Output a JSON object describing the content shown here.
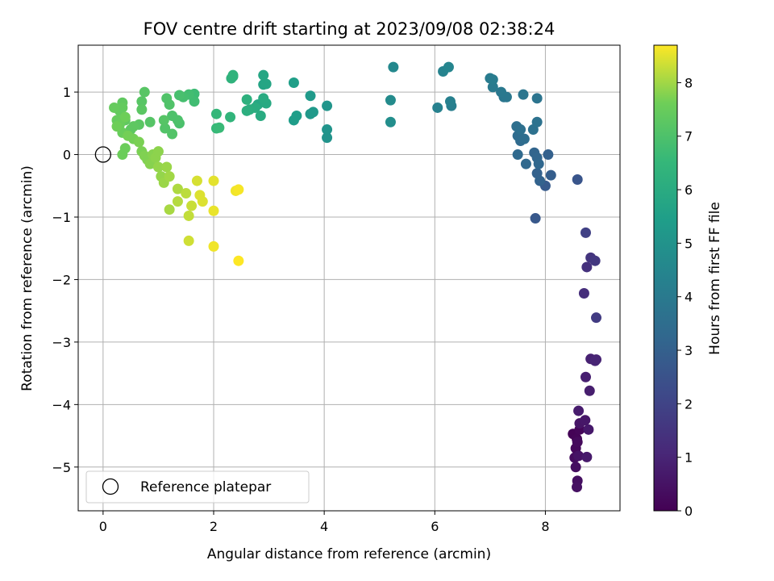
{
  "chart_data": {
    "type": "scatter",
    "title": "FOV centre drift starting at 2023/09/08 02:38:24",
    "xlabel": "Angular distance from reference (arcmin)",
    "ylabel": "Rotation from reference (arcmin)",
    "xlim": [
      -0.45,
      9.35
    ],
    "ylim": [
      -5.7,
      1.75
    ],
    "xticks": [
      0,
      2,
      4,
      6,
      8
    ],
    "yticks": [
      -5,
      -4,
      -3,
      -2,
      -1,
      0,
      1
    ],
    "grid": true,
    "colormap": "viridis",
    "colorbar": {
      "label": "Hours from first FF file",
      "range": [
        0,
        8.7
      ],
      "ticks": [
        0,
        1,
        2,
        3,
        4,
        5,
        6,
        7,
        8
      ]
    },
    "legend": {
      "position": "lower-left",
      "entries": [
        {
          "label": "Reference platepar",
          "marker": "open-circle",
          "color": "#000000"
        }
      ]
    },
    "reference_point": {
      "x": 0,
      "y": 0
    },
    "series": [
      {
        "points": [
          [
            8.5,
            -4.47,
            0.05
          ],
          [
            8.57,
            -4.55,
            0.1
          ],
          [
            8.62,
            -4.4,
            0.15
          ],
          [
            8.55,
            -4.7,
            0.2
          ],
          [
            8.58,
            -4.6,
            0.25
          ],
          [
            8.53,
            -4.85,
            0.3
          ],
          [
            8.55,
            -5.0,
            0.35
          ],
          [
            8.58,
            -5.22,
            0.4
          ],
          [
            8.57,
            -5.32,
            0.45
          ],
          [
            8.6,
            -4.82,
            0.5
          ],
          [
            8.62,
            -4.3,
            0.55
          ],
          [
            8.72,
            -4.25,
            0.6
          ],
          [
            8.78,
            -4.4,
            0.65
          ],
          [
            8.75,
            -4.84,
            0.7
          ],
          [
            8.6,
            -4.1,
            0.75
          ],
          [
            8.8,
            -3.78,
            0.8
          ],
          [
            8.73,
            -3.56,
            0.85
          ],
          [
            8.82,
            -3.27,
            0.9
          ],
          [
            8.92,
            -3.28,
            0.95
          ],
          [
            8.9,
            -3.3,
            1.0
          ],
          [
            8.7,
            -2.22,
            1.3
          ],
          [
            8.75,
            -1.8,
            1.4
          ],
          [
            8.82,
            -1.65,
            1.5
          ],
          [
            8.9,
            -1.7,
            1.6
          ],
          [
            8.92,
            -2.61,
            1.7
          ],
          [
            8.73,
            -1.25,
            1.9
          ],
          [
            8.58,
            -0.4,
            2.6
          ],
          [
            7.82,
            -1.02,
            2.7
          ],
          [
            8.0,
            -0.5,
            2.8
          ],
          [
            8.1,
            -0.33,
            2.9
          ],
          [
            8.05,
            0.0,
            3.0
          ],
          [
            7.85,
            -0.3,
            3.05
          ],
          [
            7.9,
            -0.42,
            3.1
          ],
          [
            7.8,
            0.03,
            3.15
          ],
          [
            7.85,
            -0.05,
            3.2
          ],
          [
            7.88,
            -0.15,
            3.25
          ],
          [
            7.65,
            -0.15,
            3.3
          ],
          [
            7.5,
            0.0,
            3.35
          ],
          [
            7.55,
            0.22,
            3.4
          ],
          [
            7.5,
            0.3,
            3.45
          ],
          [
            7.62,
            0.25,
            3.5
          ],
          [
            7.48,
            0.45,
            3.55
          ],
          [
            7.55,
            0.4,
            3.6
          ],
          [
            7.78,
            0.4,
            3.65
          ],
          [
            7.85,
            0.52,
            3.7
          ],
          [
            7.85,
            0.9,
            3.75
          ],
          [
            7.6,
            0.96,
            3.8
          ],
          [
            7.25,
            0.92,
            3.85
          ],
          [
            7.3,
            0.92,
            3.9
          ],
          [
            7.2,
            1.0,
            3.95
          ],
          [
            7.05,
            1.08,
            4.0
          ],
          [
            7.0,
            1.22,
            4.05
          ],
          [
            7.05,
            1.2,
            4.1
          ],
          [
            6.3,
            0.78,
            4.2
          ],
          [
            6.28,
            0.85,
            4.25
          ],
          [
            6.05,
            0.75,
            4.3
          ],
          [
            6.15,
            1.33,
            4.4
          ],
          [
            6.25,
            1.4,
            4.45
          ],
          [
            5.25,
            1.4,
            4.6
          ],
          [
            5.2,
            0.87,
            4.7
          ],
          [
            5.2,
            0.52,
            4.8
          ],
          [
            4.05,
            0.27,
            5.0
          ],
          [
            4.05,
            0.4,
            5.05
          ],
          [
            4.05,
            0.78,
            5.1
          ],
          [
            3.75,
            0.65,
            5.2
          ],
          [
            3.8,
            0.68,
            5.25
          ],
          [
            3.75,
            0.94,
            5.3
          ],
          [
            3.45,
            0.55,
            5.4
          ],
          [
            3.5,
            0.62,
            5.45
          ],
          [
            3.45,
            1.15,
            5.5
          ],
          [
            2.9,
            1.12,
            5.7
          ],
          [
            2.95,
            1.13,
            5.75
          ],
          [
            2.9,
            1.27,
            5.8
          ],
          [
            2.8,
            0.8,
            5.85
          ],
          [
            2.95,
            0.82,
            5.9
          ],
          [
            2.9,
            0.9,
            5.95
          ],
          [
            2.85,
            0.62,
            6.0
          ],
          [
            2.75,
            0.75,
            6.05
          ],
          [
            2.65,
            0.72,
            6.1
          ],
          [
            2.6,
            0.7,
            6.15
          ],
          [
            2.6,
            0.88,
            6.2
          ],
          [
            2.35,
            1.25,
            6.25
          ],
          [
            2.32,
            1.22,
            6.3
          ],
          [
            2.35,
            1.27,
            6.35
          ],
          [
            2.3,
            0.6,
            6.4
          ],
          [
            2.05,
            0.65,
            6.5
          ],
          [
            2.05,
            0.42,
            6.55
          ],
          [
            2.1,
            0.43,
            6.6
          ],
          [
            1.65,
            0.97,
            6.7
          ],
          [
            1.65,
            0.85,
            6.75
          ],
          [
            1.55,
            0.96,
            6.8
          ],
          [
            1.45,
            0.92,
            6.85
          ],
          [
            1.38,
            0.95,
            6.9
          ],
          [
            1.38,
            0.5,
            6.95
          ],
          [
            1.35,
            0.55,
            7.0
          ],
          [
            1.25,
            0.62,
            7.0
          ],
          [
            1.15,
            0.9,
            7.05
          ],
          [
            1.2,
            0.8,
            7.05
          ],
          [
            1.25,
            0.33,
            7.1
          ],
          [
            1.12,
            0.42,
            7.1
          ],
          [
            1.1,
            0.55,
            7.15
          ],
          [
            0.85,
            0.52,
            7.15
          ],
          [
            0.75,
            1.0,
            7.2
          ],
          [
            0.7,
            0.85,
            7.2
          ],
          [
            0.7,
            0.72,
            7.25
          ],
          [
            0.65,
            0.48,
            7.25
          ],
          [
            0.55,
            0.45,
            7.3
          ],
          [
            0.5,
            0.4,
            7.3
          ],
          [
            0.4,
            0.55,
            7.35
          ],
          [
            0.35,
            0.83,
            7.35
          ],
          [
            0.35,
            0.75,
            7.4
          ],
          [
            0.3,
            0.7,
            7.4
          ],
          [
            0.2,
            0.75,
            7.45
          ],
          [
            0.25,
            0.55,
            7.45
          ],
          [
            0.3,
            0.48,
            7.5
          ],
          [
            0.35,
            0.35,
            7.5
          ],
          [
            0.4,
            0.1,
            7.55
          ],
          [
            0.35,
            0.0,
            7.55
          ],
          [
            0.25,
            0.45,
            7.6
          ],
          [
            0.4,
            0.6,
            7.6
          ],
          [
            0.45,
            0.3,
            7.65
          ],
          [
            0.55,
            0.25,
            7.65
          ],
          [
            0.65,
            0.2,
            7.7
          ],
          [
            0.7,
            0.05,
            7.7
          ],
          [
            0.75,
            -0.02,
            7.75
          ],
          [
            0.8,
            -0.08,
            7.75
          ],
          [
            0.85,
            -0.15,
            7.8
          ],
          [
            0.9,
            0.0,
            7.8
          ],
          [
            0.95,
            -0.05,
            7.85
          ],
          [
            1.0,
            0.05,
            7.85
          ],
          [
            1.0,
            -0.2,
            7.9
          ],
          [
            1.05,
            -0.35,
            7.9
          ],
          [
            1.1,
            -0.45,
            7.95
          ],
          [
            1.15,
            -0.2,
            7.95
          ],
          [
            1.2,
            -0.35,
            8.0
          ],
          [
            1.2,
            -0.88,
            8.05
          ],
          [
            1.35,
            -0.55,
            8.1
          ],
          [
            1.35,
            -0.75,
            8.15
          ],
          [
            1.5,
            -0.62,
            8.2
          ],
          [
            1.55,
            -0.98,
            8.25
          ],
          [
            1.6,
            -0.82,
            8.3
          ],
          [
            1.55,
            -1.38,
            8.35
          ],
          [
            1.7,
            -0.42,
            8.4
          ],
          [
            1.75,
            -0.65,
            8.45
          ],
          [
            1.8,
            -0.75,
            8.45
          ],
          [
            2.0,
            -0.42,
            8.5
          ],
          [
            2.0,
            -0.9,
            8.55
          ],
          [
            2.0,
            -1.47,
            8.6
          ],
          [
            2.4,
            -0.58,
            8.6
          ],
          [
            2.45,
            -0.56,
            8.65
          ],
          [
            2.45,
            -1.7,
            8.7
          ]
        ]
      }
    ]
  }
}
